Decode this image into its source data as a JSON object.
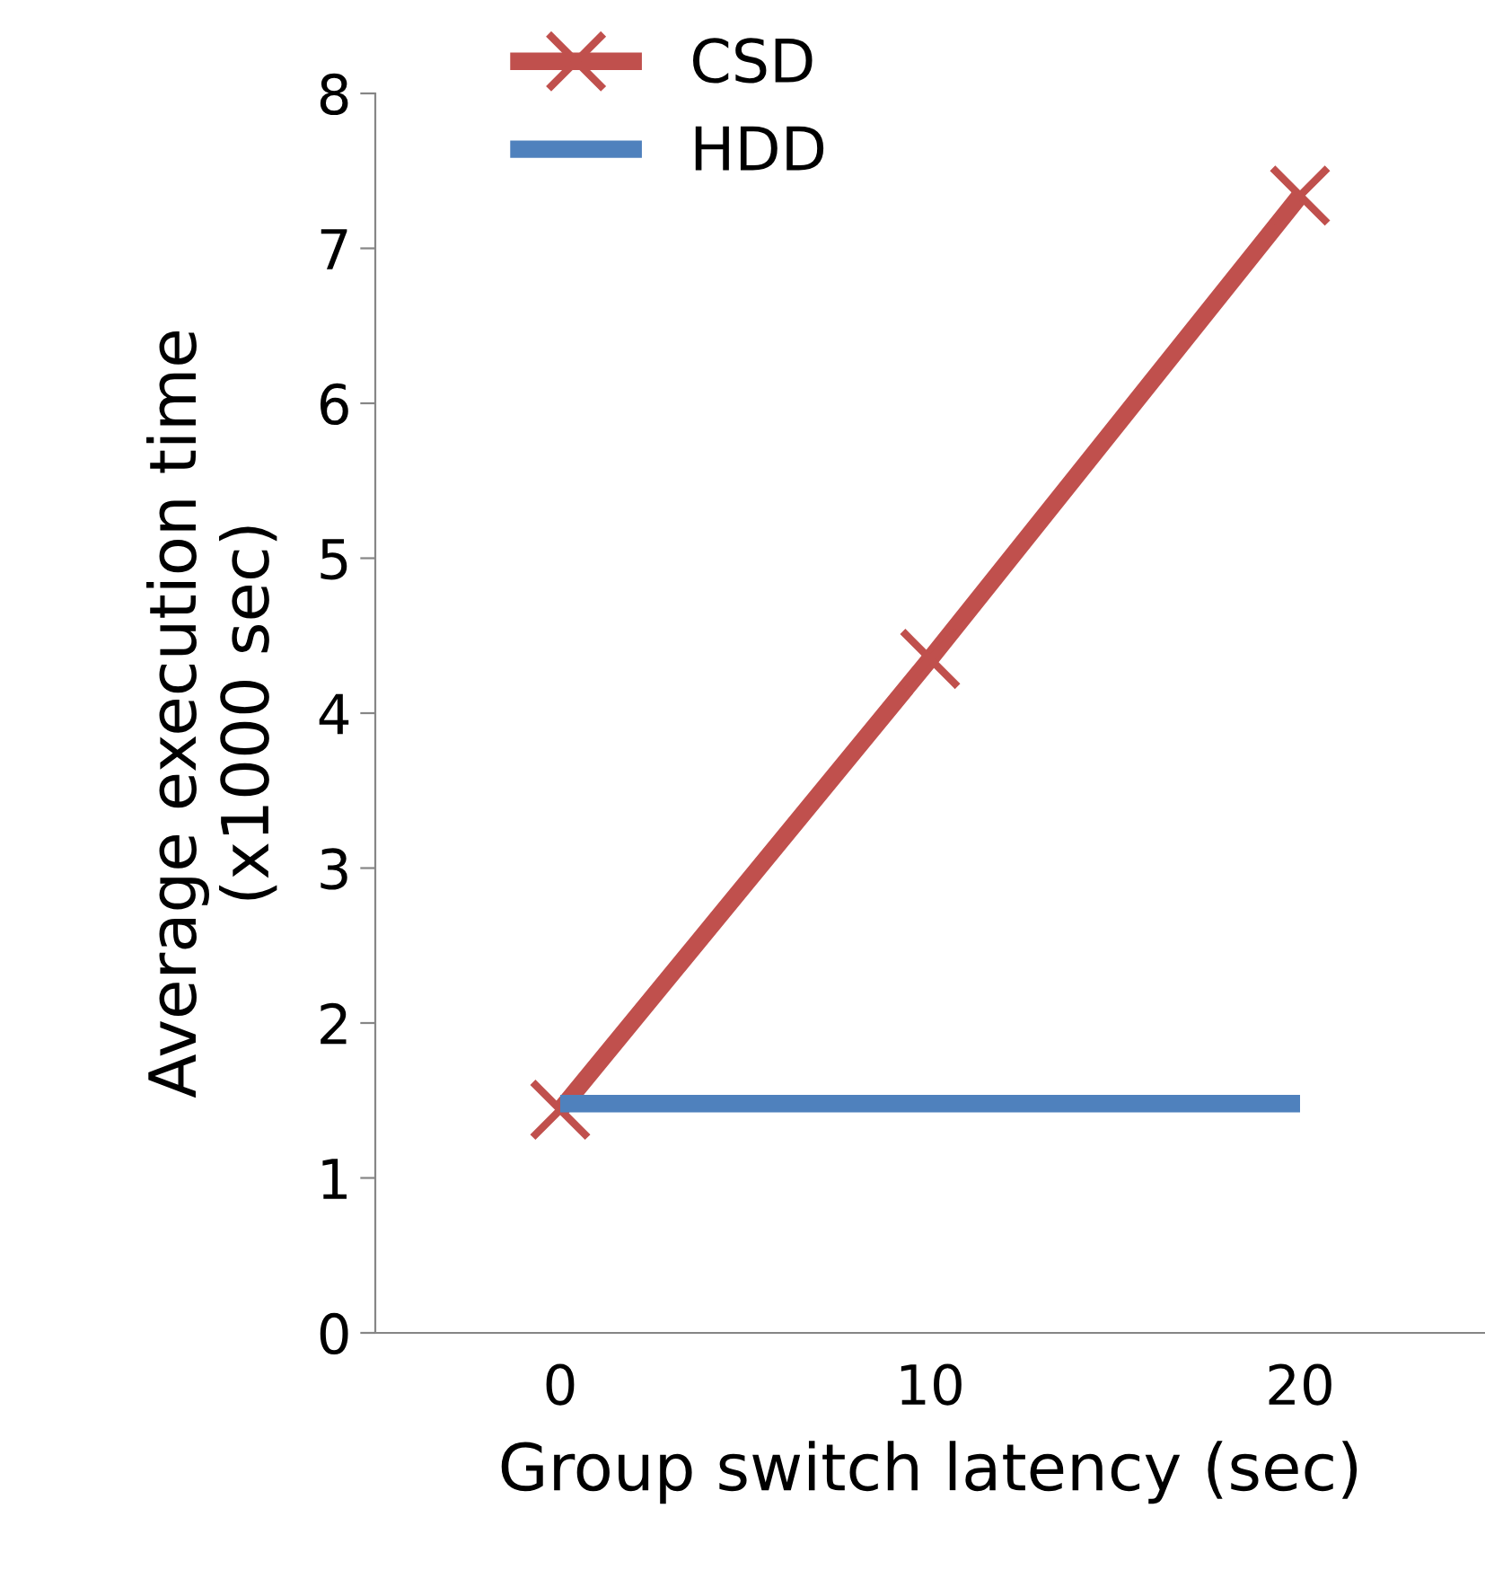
{
  "chart_data": {
    "type": "line",
    "xlabel": "Group switch latency (sec)",
    "ylabel": "Average execution time\n(x1000 sec)",
    "categories": [
      "0",
      "10",
      "20"
    ],
    "series": [
      {
        "name": "CSD",
        "color": "#c0504d",
        "values": [
          1.44,
          4.35,
          7.34
        ],
        "marker": "cross"
      },
      {
        "name": "HDD",
        "color": "#4f81bd",
        "values": [
          1.48,
          1.48,
          1.48
        ],
        "marker": "none"
      }
    ],
    "ylim": [
      0,
      8
    ],
    "yticks": [
      0,
      1,
      2,
      3,
      4,
      5,
      6,
      7,
      8
    ],
    "grid": false,
    "legend": "top left",
    "line_style": "solid"
  }
}
